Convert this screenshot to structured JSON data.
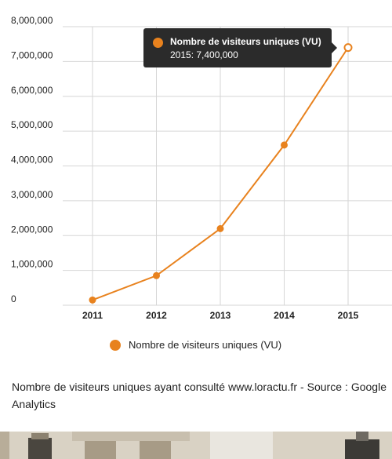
{
  "colors": {
    "series": "#e8821e",
    "grid": "#d6d6d6",
    "tooltip_bg": "#2b2b2b"
  },
  "chart_data": {
    "type": "line",
    "title": "",
    "x": [
      "2011",
      "2012",
      "2013",
      "2014",
      "2015"
    ],
    "series": [
      {
        "name": "Nombre de visiteurs uniques (VU)",
        "values": [
          150000,
          850000,
          2200000,
          4600000,
          7400000
        ]
      }
    ],
    "y_ticks": [
      "0",
      "1,000,000",
      "2,000,000",
      "3,000,000",
      "4,000,000",
      "5,000,000",
      "6,000,000",
      "7,000,000",
      "8,000,000"
    ],
    "ylim": [
      0,
      8000000
    ],
    "grid": true,
    "legend": "bottom-center"
  },
  "tooltip": {
    "series_name": "Nombre de visiteurs uniques (VU)",
    "value_text": "2015: 7,400,000"
  },
  "legend": {
    "label": "Nombre de visiteurs uniques (VU)"
  },
  "caption": "Nombre de visiteurs uniques ayant consulté www.loractu.fr - Source : Google Analytics"
}
